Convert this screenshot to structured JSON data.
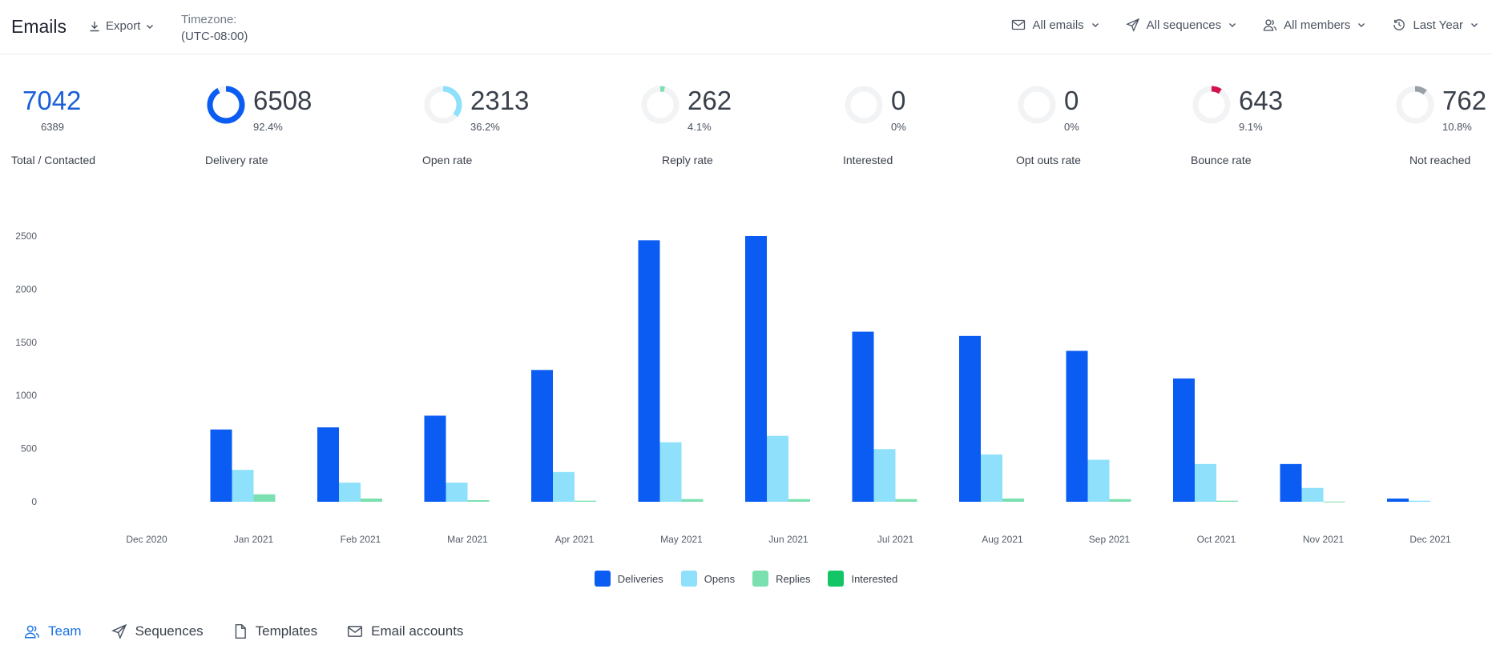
{
  "header": {
    "title": "Emails",
    "export_label": "Export",
    "timezone_label": "Timezone:",
    "timezone_value": "(UTC-08:00)",
    "filters": [
      {
        "label": "All emails",
        "icon": "mail-icon"
      },
      {
        "label": "All sequences",
        "icon": "send-icon"
      },
      {
        "label": "All members",
        "icon": "users-icon"
      },
      {
        "label": "Last Year",
        "icon": "history-icon"
      }
    ]
  },
  "stats": [
    {
      "value": "7042",
      "sub": "6389",
      "caption": "Total / Contacted",
      "color": "#1a5fd8",
      "fraction": null
    },
    {
      "value": "6508",
      "sub": "92.4%",
      "caption": "Delivery rate",
      "color": "#0a5cf2",
      "fraction": 0.924
    },
    {
      "value": "2313",
      "sub": "36.2%",
      "caption": "Open rate",
      "color": "#8fe0fb",
      "fraction": 0.362
    },
    {
      "value": "262",
      "sub": "4.1%",
      "caption": "Reply rate",
      "color": "#7be0b0",
      "fraction": 0.041
    },
    {
      "value": "0",
      "sub": "0%",
      "caption": "Interested",
      "color": "#13c566",
      "fraction": 0
    },
    {
      "value": "0",
      "sub": "0%",
      "caption": "Opt outs rate",
      "color": "#9aa0a8",
      "fraction": 0
    },
    {
      "value": "643",
      "sub": "9.1%",
      "caption": "Bounce rate",
      "color": "#d4124b",
      "fraction": 0.091
    },
    {
      "value": "762",
      "sub": "10.8%",
      "caption": "Not reached",
      "color": "#9aa0a8",
      "fraction": 0.108
    }
  ],
  "chart_data": {
    "type": "bar",
    "categories": [
      "Dec 2020",
      "Jan 2021",
      "Feb 2021",
      "Mar 2021",
      "Apr 2021",
      "May 2021",
      "Jun 2021",
      "Jul 2021",
      "Aug 2021",
      "Sep 2021",
      "Oct 2021",
      "Nov 2021",
      "Dec 2021"
    ],
    "series": [
      {
        "name": "Deliveries",
        "color": "#0a5cf2",
        "values": [
          0,
          680,
          700,
          810,
          1240,
          2460,
          2500,
          1600,
          1560,
          1420,
          1160,
          355,
          30
        ]
      },
      {
        "name": "Opens",
        "color": "#8fe0fb",
        "values": [
          0,
          300,
          180,
          180,
          280,
          560,
          620,
          495,
          445,
          395,
          355,
          130,
          10
        ]
      },
      {
        "name": "Replies",
        "color": "#7be0b0",
        "values": [
          0,
          70,
          30,
          15,
          10,
          25,
          25,
          25,
          30,
          25,
          10,
          2,
          0
        ]
      },
      {
        "name": "Interested",
        "color": "#13c566",
        "values": [
          0,
          0,
          0,
          0,
          0,
          0,
          0,
          0,
          0,
          0,
          0,
          0,
          0
        ]
      }
    ],
    "yticks": [
      0,
      500,
      1000,
      1500,
      2000,
      2500
    ],
    "ylim": [
      0,
      2500
    ],
    "legend": "bottom-center",
    "grid": false
  },
  "tabs": [
    {
      "label": "Team",
      "icon": "users-icon",
      "active": true
    },
    {
      "label": "Sequences",
      "icon": "send-icon",
      "active": false
    },
    {
      "label": "Templates",
      "icon": "document-icon",
      "active": false
    },
    {
      "label": "Email accounts",
      "icon": "mail-icon",
      "active": false
    }
  ]
}
